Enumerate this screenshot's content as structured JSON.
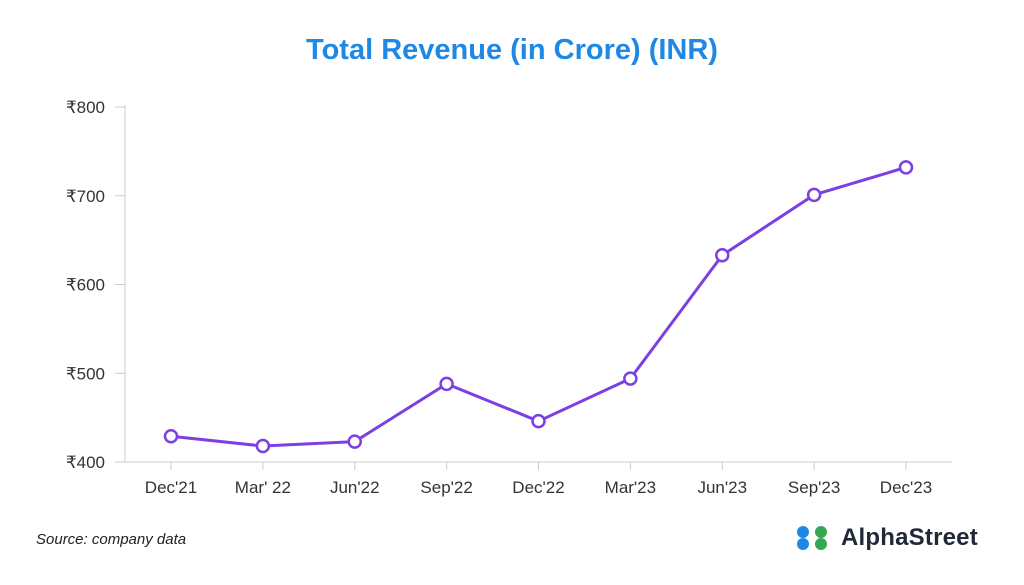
{
  "colors": {
    "title": "#1e88e5",
    "line": "#7b3fe4",
    "axis": "#cccccc",
    "logo_blue": "#1e88e5",
    "logo_green": "#34a853"
  },
  "chart_data": {
    "type": "line",
    "title": "Total Revenue (in Crore) (INR)",
    "xlabel": "",
    "ylabel": "",
    "categories": [
      "Dec'21",
      "Mar' 22",
      "Jun'22",
      "Sep'22",
      "Dec'22",
      "Mar'23",
      "Jun'23",
      "Sep'23",
      "Dec'23"
    ],
    "series": [
      {
        "name": "Total Revenue",
        "values": [
          429,
          418,
          423,
          488,
          446,
          494,
          633,
          701,
          732
        ]
      }
    ],
    "ylim": [
      400,
      800
    ],
    "yticks": [
      400,
      500,
      600,
      700,
      800
    ],
    "ytick_labels": [
      "₹400",
      "₹500",
      "₹600",
      "₹700",
      "₹800"
    ],
    "grid": false,
    "legend": "none"
  },
  "footer": {
    "source": "Source: company data",
    "brand": "AlphaStreet",
    "brand_icon": "alphastreet-logo-icon"
  }
}
